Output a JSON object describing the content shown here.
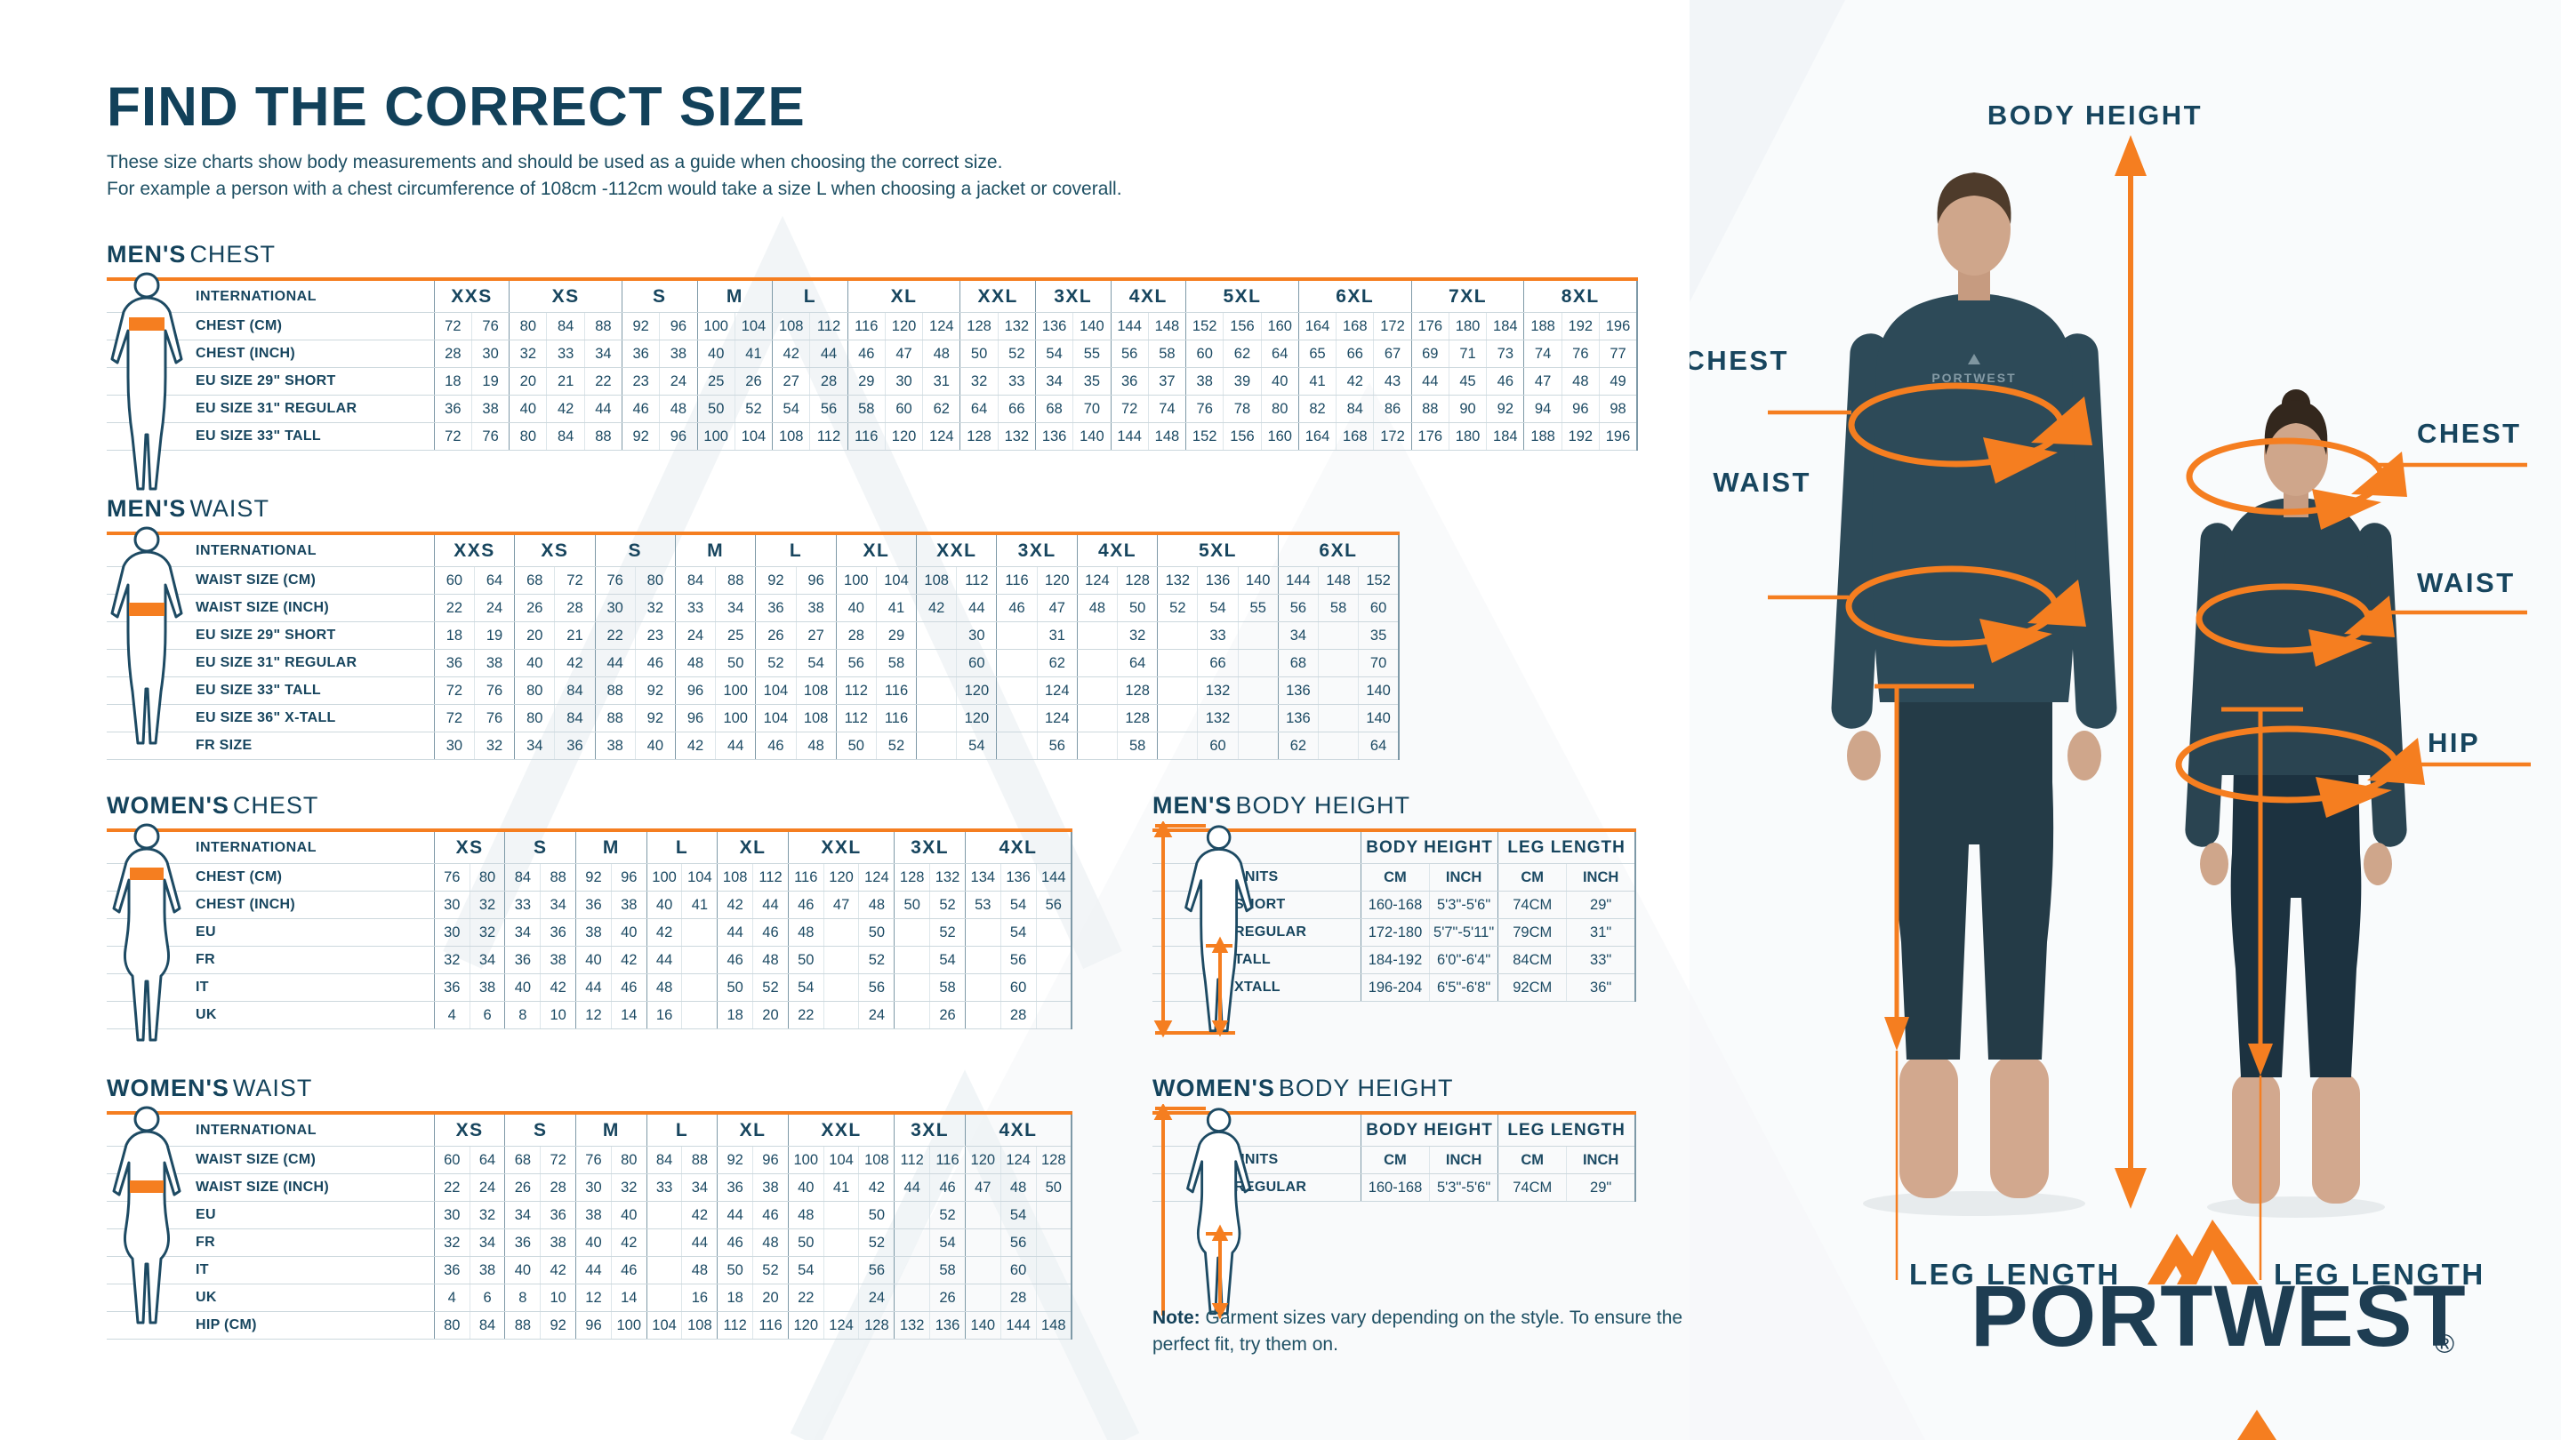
{
  "header": {
    "title": "FIND THE CORRECT SIZE",
    "intro_line1": "These size charts show body measurements and should be used as a guide when choosing the correct size.",
    "intro_line2": "For example a person with a chest circumference of 108cm -112cm would take a size L when choosing a jacket or coverall."
  },
  "note": {
    "bold": "Note:",
    "text": "Garment sizes vary depending on the style. To ensure the perfect fit, try them on."
  },
  "colors": {
    "accent_orange": "#F57E20",
    "navy": "#17455E"
  },
  "figure_labels": {
    "body_height": "BODY HEIGHT",
    "chest_left": "CHEST",
    "chest_right": "CHEST",
    "waist_left": "WAIST",
    "waist_right": "WAIST",
    "hip": "HIP",
    "leg_length_left": "LEG LENGTH",
    "leg_length_right": "LEG LENGTH",
    "shirt_logo": "PORTWEST"
  },
  "logo": {
    "text": "PORTWEST",
    "registered": "®",
    "icon": "mountain-icon"
  },
  "tables": {
    "mens_chest": {
      "title_bold": "MEN'S",
      "title_rest": "CHEST",
      "icon": "male-chest-figure-icon",
      "label_header": "INTERNATIONAL",
      "groups": [
        [
          "XXS",
          2
        ],
        [
          "XS",
          3
        ],
        [
          "S",
          2
        ],
        [
          "M",
          2
        ],
        [
          "L",
          2
        ],
        [
          "XL",
          3
        ],
        [
          "XXL",
          2
        ],
        [
          "3XL",
          2
        ],
        [
          "4XL",
          2
        ],
        [
          "5XL",
          3
        ],
        [
          "6XL",
          3
        ],
        [
          "7XL",
          3
        ],
        [
          "8XL",
          3
        ]
      ],
      "rows": [
        {
          "label": "CHEST (CM)",
          "cells": [
            "72",
            "76",
            "80",
            "84",
            "88",
            "92",
            "96",
            "100",
            "104",
            "108",
            "112",
            "116",
            "120",
            "124",
            "128",
            "132",
            "136",
            "140",
            "144",
            "148",
            "152",
            "156",
            "160",
            "164",
            "168",
            "172",
            "176",
            "180",
            "184",
            "188",
            "192",
            "196"
          ]
        },
        {
          "label": "CHEST (INCH)",
          "cells": [
            "28",
            "30",
            "32",
            "33",
            "34",
            "36",
            "38",
            "40",
            "41",
            "42",
            "44",
            "46",
            "47",
            "48",
            "50",
            "52",
            "54",
            "55",
            "56",
            "58",
            "60",
            "62",
            "64",
            "65",
            "66",
            "67",
            "69",
            "71",
            "73",
            "74",
            "76",
            "77"
          ]
        },
        {
          "label": "EU SIZE 29\" SHORT",
          "cells": [
            "18",
            "19",
            "20",
            "21",
            "22",
            "23",
            "24",
            "25",
            "26",
            "27",
            "28",
            "29",
            "30",
            "31",
            "32",
            "33",
            "34",
            "35",
            "36",
            "37",
            "38",
            "39",
            "40",
            "41",
            "42",
            "43",
            "44",
            "45",
            "46",
            "47",
            "48",
            "49"
          ]
        },
        {
          "label": "EU SIZE 31\" REGULAR",
          "cells": [
            "36",
            "38",
            "40",
            "42",
            "44",
            "46",
            "48",
            "50",
            "52",
            "54",
            "56",
            "58",
            "60",
            "62",
            "64",
            "66",
            "68",
            "70",
            "72",
            "74",
            "76",
            "78",
            "80",
            "82",
            "84",
            "86",
            "88",
            "90",
            "92",
            "94",
            "96",
            "98"
          ]
        },
        {
          "label": "EU SIZE 33\" TALL",
          "cells": [
            "72",
            "76",
            "80",
            "84",
            "88",
            "92",
            "96",
            "100",
            "104",
            "108",
            "112",
            "116",
            "120",
            "124",
            "128",
            "132",
            "136",
            "140",
            "144",
            "148",
            "152",
            "156",
            "160",
            "164",
            "168",
            "172",
            "176",
            "180",
            "184",
            "188",
            "192",
            "196"
          ]
        }
      ]
    },
    "mens_waist": {
      "title_bold": "MEN'S",
      "title_rest": "WAIST",
      "icon": "male-waist-figure-icon",
      "label_header": "INTERNATIONAL",
      "groups": [
        [
          "XXS",
          2
        ],
        [
          "XS",
          2
        ],
        [
          "S",
          2
        ],
        [
          "M",
          2
        ],
        [
          "L",
          2
        ],
        [
          "XL",
          2
        ],
        [
          "XXL",
          2
        ],
        [
          "3XL",
          2
        ],
        [
          "4XL",
          2
        ],
        [
          "5XL",
          3
        ],
        [
          "6XL",
          3
        ]
      ],
      "rows": [
        {
          "label": "WAIST SIZE (CM)",
          "cells": [
            "60",
            "64",
            "68",
            "72",
            "76",
            "80",
            "84",
            "88",
            "92",
            "96",
            "100",
            "104",
            "108",
            "112",
            "116",
            "120",
            "124",
            "128",
            "132",
            "136",
            "140",
            "144",
            "148",
            "152"
          ]
        },
        {
          "label": "WAIST SIZE (INCH)",
          "cells": [
            "22",
            "24",
            "26",
            "28",
            "30",
            "32",
            "33",
            "34",
            "36",
            "38",
            "40",
            "41",
            "42",
            "44",
            "46",
            "47",
            "48",
            "50",
            "52",
            "54",
            "55",
            "56",
            "58",
            "60"
          ]
        },
        {
          "label": "EU SIZE 29\" SHORT",
          "cells": [
            "18",
            "19",
            "20",
            "21",
            "22",
            "23",
            "24",
            "25",
            "26",
            "27",
            "28",
            "29",
            "",
            "30",
            "",
            "31",
            "",
            "32",
            "",
            "33",
            "",
            "34",
            "",
            "35"
          ]
        },
        {
          "label": "EU SIZE 31\" REGULAR",
          "cells": [
            "36",
            "38",
            "40",
            "42",
            "44",
            "46",
            "48",
            "50",
            "52",
            "54",
            "56",
            "58",
            "",
            "60",
            "",
            "62",
            "",
            "64",
            "",
            "66",
            "",
            "68",
            "",
            "70"
          ]
        },
        {
          "label": "EU SIZE 33\" TALL",
          "cells": [
            "72",
            "76",
            "80",
            "84",
            "88",
            "92",
            "96",
            "100",
            "104",
            "108",
            "112",
            "116",
            "",
            "120",
            "",
            "124",
            "",
            "128",
            "",
            "132",
            "",
            "136",
            "",
            "140"
          ]
        },
        {
          "label": "EU SIZE 36\" X-TALL",
          "cells": [
            "72",
            "76",
            "80",
            "84",
            "88",
            "92",
            "96",
            "100",
            "104",
            "108",
            "112",
            "116",
            "",
            "120",
            "",
            "124",
            "",
            "128",
            "",
            "132",
            "",
            "136",
            "",
            "140"
          ]
        },
        {
          "label": "FR SIZE",
          "cells": [
            "30",
            "32",
            "34",
            "36",
            "38",
            "40",
            "42",
            "44",
            "46",
            "48",
            "50",
            "52",
            "",
            "54",
            "",
            "56",
            "",
            "58",
            "",
            "60",
            "",
            "62",
            "",
            "64"
          ]
        }
      ]
    },
    "womens_chest": {
      "title_bold": "WOMEN'S",
      "title_rest": "CHEST",
      "icon": "female-chest-figure-icon",
      "label_header": "INTERNATIONAL",
      "groups": [
        [
          "XS",
          2
        ],
        [
          "S",
          2
        ],
        [
          "M",
          2
        ],
        [
          "L",
          2
        ],
        [
          "XL",
          2
        ],
        [
          "XXL",
          3
        ],
        [
          "3XL",
          2
        ],
        [
          "4XL",
          3
        ]
      ],
      "rows": [
        {
          "label": "CHEST (CM)",
          "cells": [
            "76",
            "80",
            "84",
            "88",
            "92",
            "96",
            "100",
            "104",
            "108",
            "112",
            "116",
            "120",
            "124",
            "128",
            "132",
            "134",
            "136",
            "144"
          ]
        },
        {
          "label": "CHEST (INCH)",
          "cells": [
            "30",
            "32",
            "33",
            "34",
            "36",
            "38",
            "40",
            "41",
            "42",
            "44",
            "46",
            "47",
            "48",
            "50",
            "52",
            "53",
            "54",
            "56"
          ]
        },
        {
          "label": "EU",
          "cells": [
            "30",
            "32",
            "34",
            "36",
            "38",
            "40",
            "42",
            "",
            "44",
            "46",
            "48",
            "",
            "50",
            "",
            "52",
            "",
            "54",
            ""
          ]
        },
        {
          "label": "FR",
          "cells": [
            "32",
            "34",
            "36",
            "38",
            "40",
            "42",
            "44",
            "",
            "46",
            "48",
            "50",
            "",
            "52",
            "",
            "54",
            "",
            "56",
            ""
          ]
        },
        {
          "label": "IT",
          "cells": [
            "36",
            "38",
            "40",
            "42",
            "44",
            "46",
            "48",
            "",
            "50",
            "52",
            "54",
            "",
            "56",
            "",
            "58",
            "",
            "60",
            ""
          ]
        },
        {
          "label": "UK",
          "cells": [
            "4",
            "6",
            "8",
            "10",
            "12",
            "14",
            "16",
            "",
            "18",
            "20",
            "22",
            "",
            "24",
            "",
            "26",
            "",
            "28",
            ""
          ]
        }
      ]
    },
    "womens_waist": {
      "title_bold": "WOMEN'S",
      "title_rest": "WAIST",
      "icon": "female-waist-figure-icon",
      "label_header": "INTERNATIONAL",
      "groups": [
        [
          "XS",
          2
        ],
        [
          "S",
          2
        ],
        [
          "M",
          2
        ],
        [
          "L",
          2
        ],
        [
          "XL",
          2
        ],
        [
          "XXL",
          3
        ],
        [
          "3XL",
          2
        ],
        [
          "4XL",
          3
        ]
      ],
      "rows": [
        {
          "label": "WAIST SIZE (CM)",
          "cells": [
            "60",
            "64",
            "68",
            "72",
            "76",
            "80",
            "84",
            "88",
            "92",
            "96",
            "100",
            "104",
            "108",
            "112",
            "116",
            "120",
            "124",
            "128"
          ]
        },
        {
          "label": "WAIST SIZE (INCH)",
          "cells": [
            "22",
            "24",
            "26",
            "28",
            "30",
            "32",
            "33",
            "34",
            "36",
            "38",
            "40",
            "41",
            "42",
            "44",
            "46",
            "47",
            "48",
            "50"
          ]
        },
        {
          "label": "EU",
          "cells": [
            "30",
            "32",
            "34",
            "36",
            "38",
            "40",
            "",
            "42",
            "44",
            "46",
            "48",
            "",
            "50",
            "",
            "52",
            "",
            "54",
            ""
          ]
        },
        {
          "label": "FR",
          "cells": [
            "32",
            "34",
            "36",
            "38",
            "40",
            "42",
            "",
            "44",
            "46",
            "48",
            "50",
            "",
            "52",
            "",
            "54",
            "",
            "56",
            ""
          ]
        },
        {
          "label": "IT",
          "cells": [
            "36",
            "38",
            "40",
            "42",
            "44",
            "46",
            "",
            "48",
            "50",
            "52",
            "54",
            "",
            "56",
            "",
            "58",
            "",
            "60",
            ""
          ]
        },
        {
          "label": "UK",
          "cells": [
            "4",
            "6",
            "8",
            "10",
            "12",
            "14",
            "",
            "16",
            "18",
            "20",
            "22",
            "",
            "24",
            "",
            "26",
            "",
            "28",
            ""
          ]
        },
        {
          "label": "HIP (CM)",
          "cells": [
            "80",
            "84",
            "88",
            "92",
            "96",
            "100",
            "104",
            "108",
            "112",
            "116",
            "120",
            "124",
            "128",
            "132",
            "136",
            "140",
            "144",
            "148"
          ]
        }
      ]
    },
    "mens_bodyheight": {
      "title_bold": "MEN'S",
      "title_rest": "BODY HEIGHT",
      "icon": "male-height-figure-icon",
      "label_header": "",
      "first_row_bold": true,
      "groups": [
        [
          "BODY HEIGHT",
          2
        ],
        [
          "LEG LENGTH",
          2
        ]
      ],
      "rows": [
        {
          "label": "UNITS",
          "cells": [
            "CM",
            "INCH",
            "CM",
            "INCH"
          ]
        },
        {
          "label": "SHORT",
          "cells": [
            "160-168",
            "5'3\"-5'6\"",
            "74CM",
            "29\""
          ]
        },
        {
          "label": "REGULAR",
          "cells": [
            "172-180",
            "5'7\"-5'11\"",
            "79CM",
            "31\""
          ]
        },
        {
          "label": "TALL",
          "cells": [
            "184-192",
            "6'0\"-6'4\"",
            "84CM",
            "33\""
          ]
        },
        {
          "label": "XTALL",
          "cells": [
            "196-204",
            "6'5\"-6'8\"",
            "92CM",
            "36\""
          ]
        }
      ]
    },
    "womens_bodyheight": {
      "title_bold": "WOMEN'S",
      "title_rest": "BODY HEIGHT",
      "icon": "female-height-figure-icon",
      "label_header": "",
      "first_row_bold": true,
      "groups": [
        [
          "BODY HEIGHT",
          2
        ],
        [
          "LEG LENGTH",
          2
        ]
      ],
      "rows": [
        {
          "label": "UNITS",
          "cells": [
            "CM",
            "INCH",
            "CM",
            "INCH"
          ]
        },
        {
          "label": "REGULAR",
          "cells": [
            "160-168",
            "5'3\"-5'6\"",
            "74CM",
            "29\""
          ]
        }
      ]
    }
  }
}
